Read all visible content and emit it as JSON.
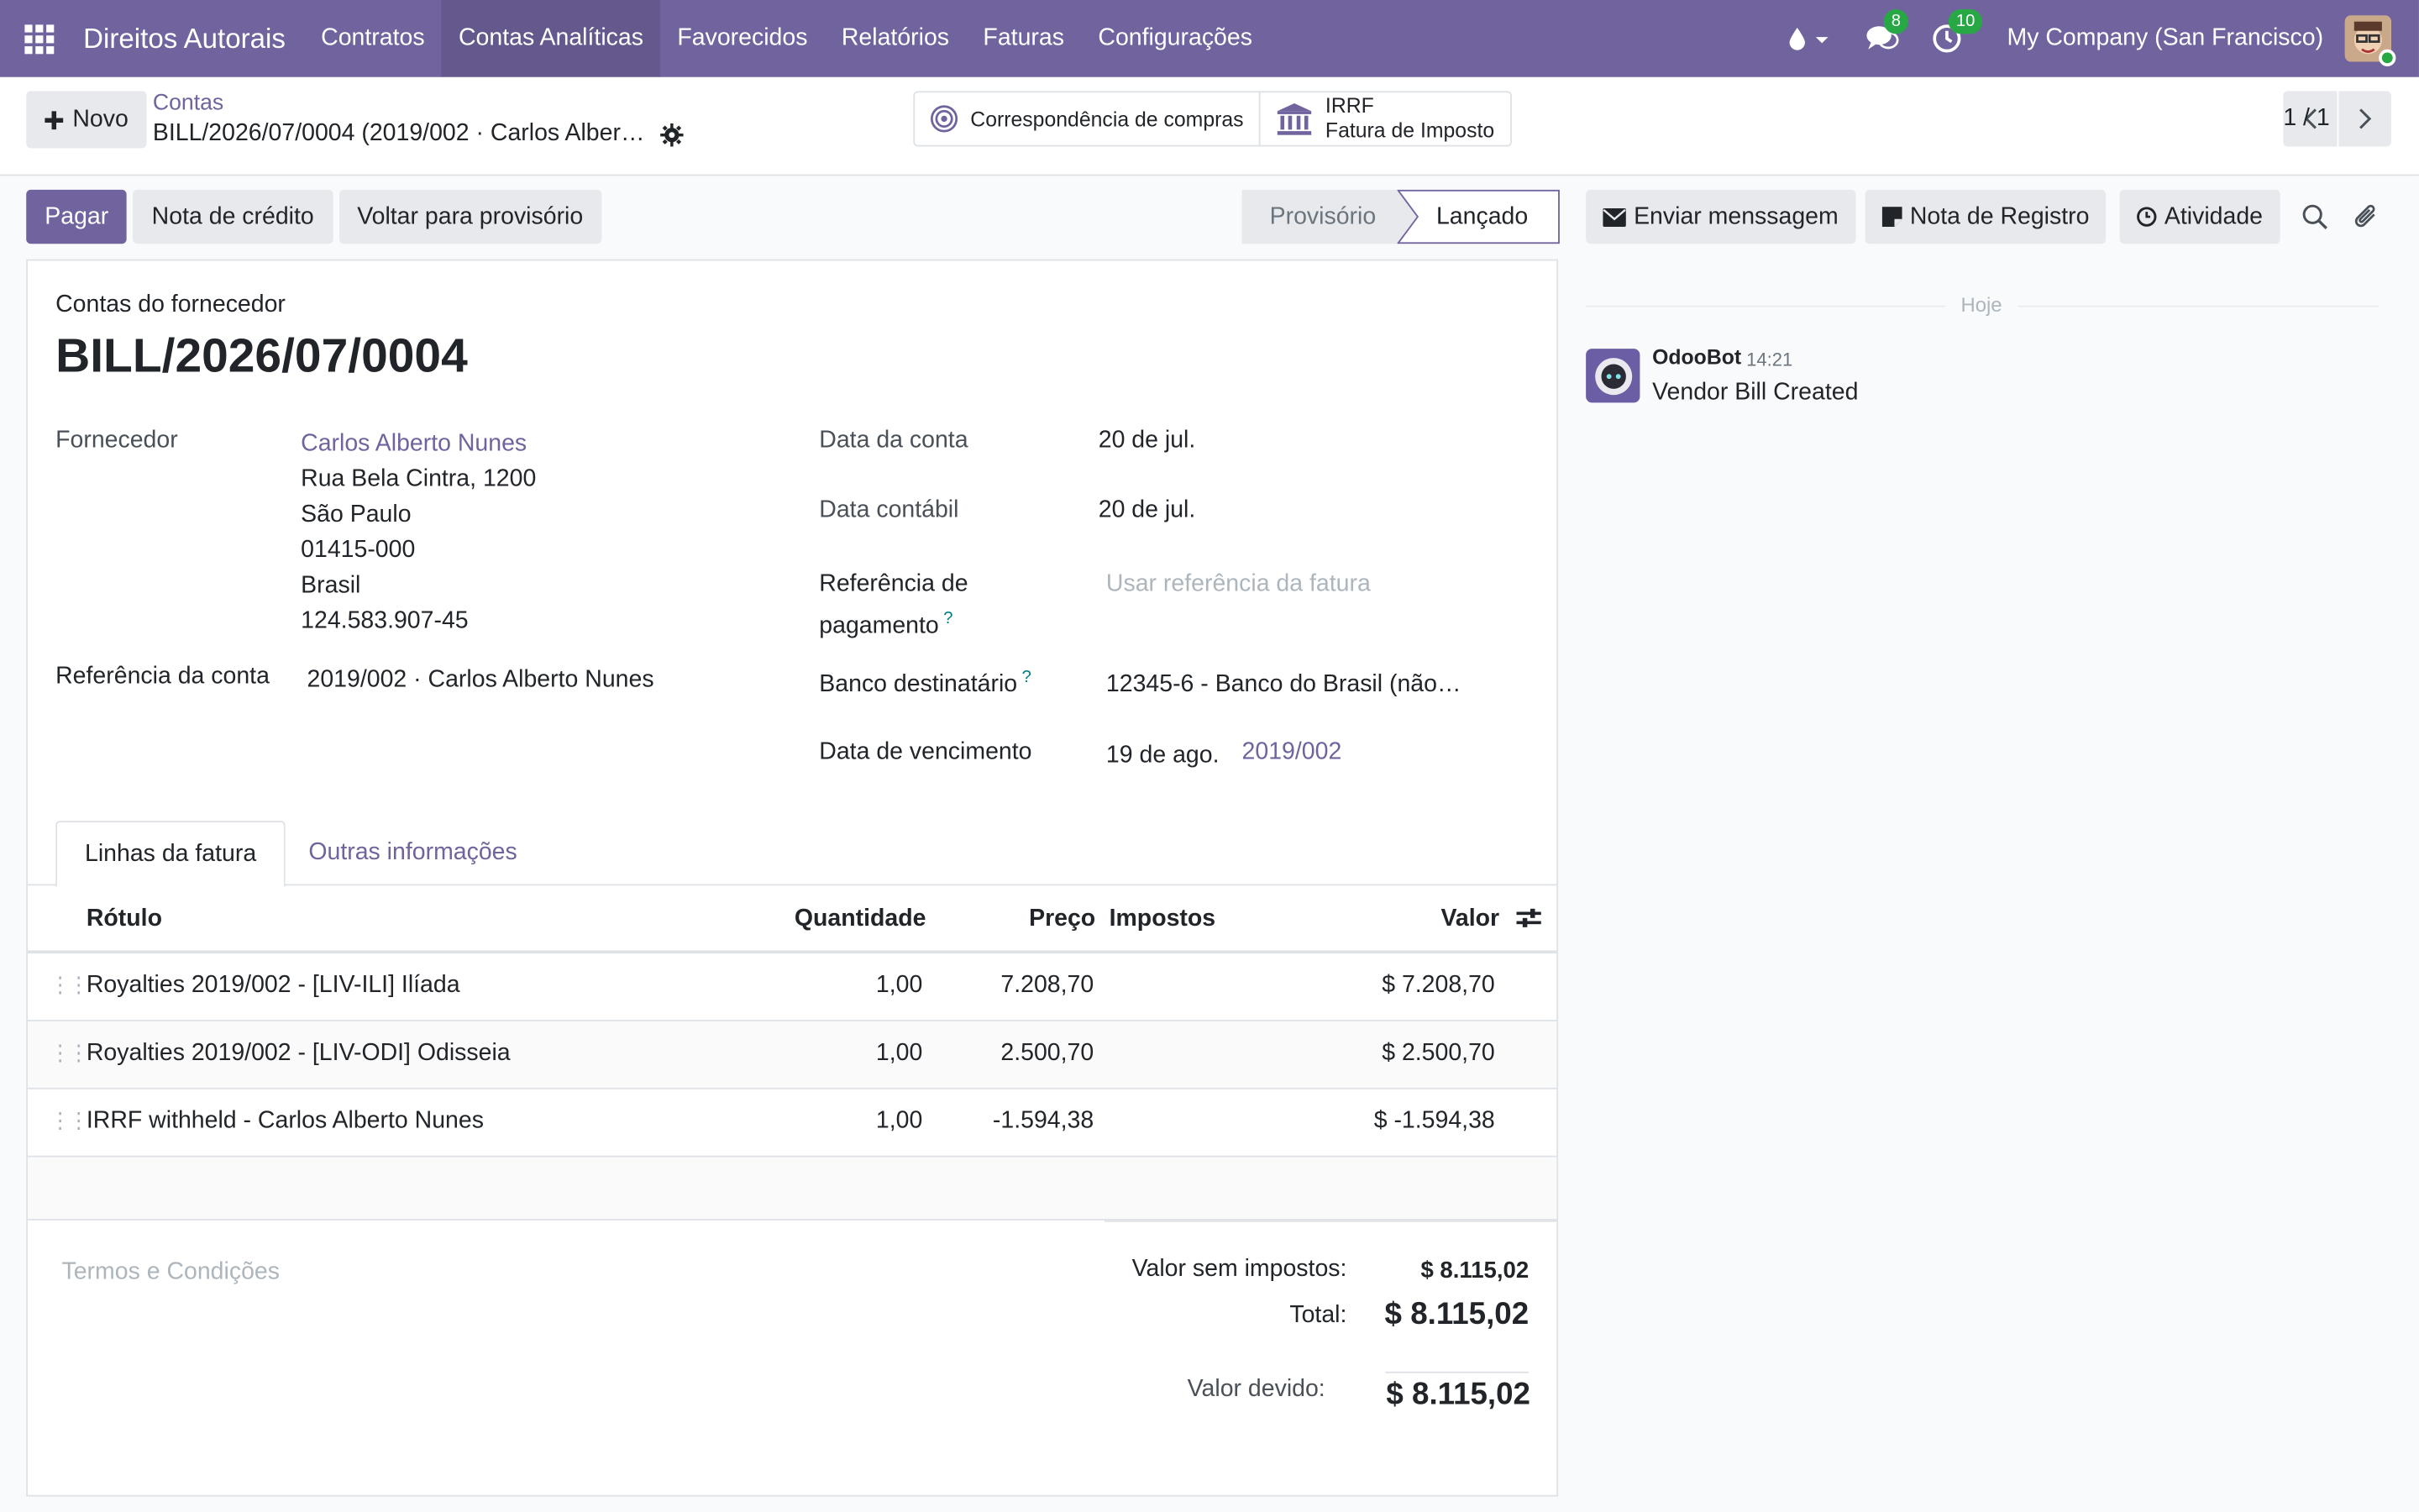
{
  "navbar": {
    "brand": "Direitos Autorais",
    "menu": [
      "Contratos",
      "Contas Analíticas",
      "Favorecidos",
      "Relatórios",
      "Faturas",
      "Configurações"
    ],
    "active_menu": "Contas Analíticas",
    "messages_count": "8",
    "activities_count": "10",
    "company": "My Company (San Francisco)",
    "accent": "#71639e"
  },
  "control_panel": {
    "new_label": "Novo",
    "breadcrumb_parent": "Contas",
    "breadcrumb_current": "BILL/2026/07/0004 (2019/002 · Carlos Alber…",
    "smart_buttons": {
      "purchase_match": "Correspondência de compras",
      "tax_top": "IRRF",
      "tax_bottom": "Fatura de Imposto"
    },
    "pager": "1 / 1"
  },
  "statusbar": {
    "pay": "Pagar",
    "credit_note": "Nota de crédito",
    "reset_draft": "Voltar para provisório",
    "stage_draft": "Provisório",
    "stage_posted": "Lançado"
  },
  "form": {
    "doc_type": "Contas do fornecedor",
    "doc_name": "BILL/2026/07/0004",
    "vendor_label": "Fornecedor",
    "vendor_name": "Carlos Alberto Nunes",
    "vendor_address": [
      "Rua Bela Cintra, 1200",
      "São Paulo",
      "01415-000",
      "Brasil",
      "124.583.907-45"
    ],
    "bill_ref_label": "Referência da conta",
    "bill_ref_value": "2019/002 · Carlos Alberto Nunes",
    "bill_date_label": "Data da conta",
    "bill_date_value": "20 de jul.",
    "acc_date_label": "Data contábil",
    "acc_date_value": "20 de jul.",
    "pay_ref_label_1": "Referência de",
    "pay_ref_label_2": "pagamento",
    "pay_ref_placeholder": "Usar referência da fatura",
    "bank_label": "Banco destinatário",
    "bank_value": "12345-6 - Banco do Brasil (não…",
    "due_label": "Data de vencimento",
    "due_value": "19 de ago.",
    "due_ref": "2019/002",
    "help_mark": "?"
  },
  "tabs": {
    "lines": "Linhas da fatura",
    "other": "Outras informações"
  },
  "lines": {
    "headers": {
      "label": "Rótulo",
      "qty": "Quantidade",
      "price": "Preço",
      "taxes": "Impostos",
      "amount": "Valor"
    },
    "rows": [
      {
        "label": "Royalties 2019/002 - [LIV-ILI] Ilíada",
        "qty": "1,00",
        "price": "7.208,70",
        "taxes": "",
        "amount": "$ 7.208,70"
      },
      {
        "label": "Royalties 2019/002 - [LIV-ODI] Odisseia",
        "qty": "1,00",
        "price": "2.500,70",
        "taxes": "",
        "amount": "$ 2.500,70"
      },
      {
        "label": "IRRF withheld - Carlos Alberto Nunes",
        "qty": "1,00",
        "price": "-1.594,38",
        "taxes": "",
        "amount": "$ -1.594,38"
      }
    ]
  },
  "totals": {
    "terms_placeholder": "Termos e Condições",
    "untaxed_label": "Valor sem impostos:",
    "untaxed_value": "$ 8.115,02",
    "total_label": "Total:",
    "total_value": "$ 8.115,02",
    "due_label": "Valor devido:",
    "due_value": "$ 8.115,02"
  },
  "chatter": {
    "send_message": "Enviar menssagem",
    "log_note": "Nota de Registro",
    "activity": "Atividade",
    "today": "Hoje",
    "author": "OdooBot",
    "time": "14:21",
    "message": "Vendor Bill Created"
  }
}
